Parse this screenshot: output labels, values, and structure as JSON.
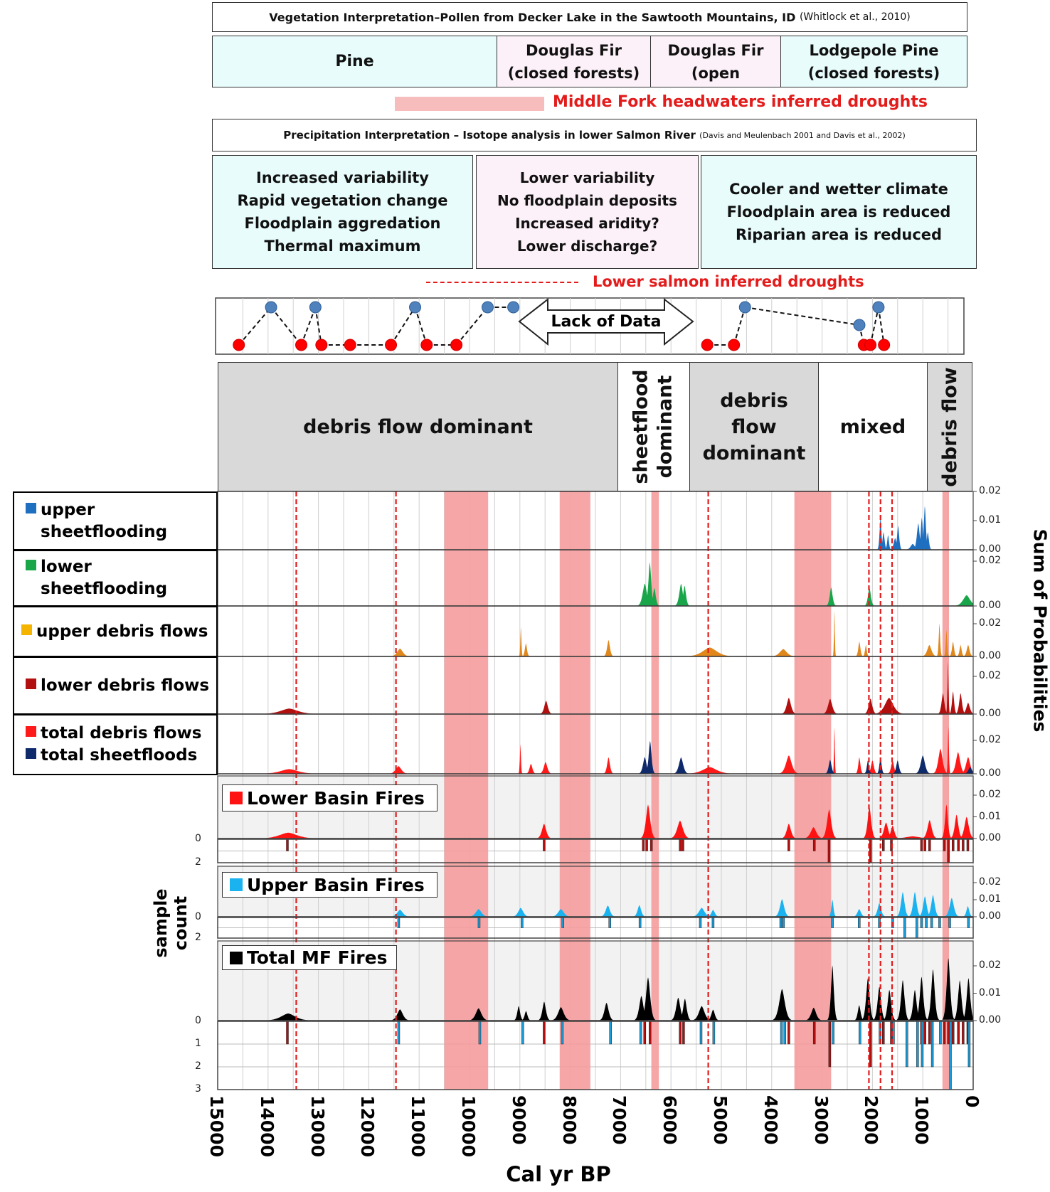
{
  "header": {
    "veg_title": "Vegetation Interpretation–Pollen from Decker Lake in the Sawtooth Mountains, ID",
    "veg_citation": "(Whitlock et al., 2010)",
    "veg_zones": [
      {
        "lines": [
          "Pine"
        ]
      },
      {
        "lines": [
          "Douglas Fir",
          "(closed forests)"
        ]
      },
      {
        "lines": [
          "Douglas Fir",
          "(open"
        ]
      },
      {
        "lines": [
          "Lodgepole Pine",
          "(closed forests)"
        ]
      }
    ],
    "mf_drought_legend": "Middle Fork headwaters inferred droughts",
    "precip_title": "Precipitation Interpretation – Isotope analysis in lower Salmon River",
    "precip_citation": "(Davis and Meulenbach 2001 and Davis et al., 2002)",
    "precip_zones": [
      {
        "lines": [
          "Increased variability",
          "Rapid vegetation change",
          "Floodplain aggredation",
          "Thermal maximum"
        ]
      },
      {
        "lines": [
          "Lower variability",
          "No floodplain deposits",
          "Increased aridity?",
          "Lower discharge?"
        ]
      },
      {
        "lines": [
          "Cooler and wetter climate",
          "Floodplain area is reduced",
          "Riparian area is reduced"
        ]
      }
    ],
    "ls_drought_legend": "Lower salmon inferred droughts",
    "lack_of_data": "Lack of Data"
  },
  "process_zones": [
    {
      "lines": [
        "debris flow dominant"
      ]
    },
    {
      "lines": [
        "sheetflood",
        "dominant"
      ]
    },
    {
      "lines": [
        "debris",
        "flow",
        "dominant"
      ]
    },
    {
      "lines": [
        "mixed"
      ]
    },
    {
      "lines": [
        "debris flow"
      ]
    }
  ],
  "legends": {
    "upper_sf": [
      "upper",
      "sheetflooding"
    ],
    "lower_sf": [
      "lower",
      "sheetflooding"
    ],
    "upper_df": "upper debris flows",
    "lower_df": "lower debris flows",
    "total_df": "total debris flows",
    "total_sf": "total sheetfloods",
    "lower_fires": "Lower Basin Fires",
    "upper_fires": "Upper Basin Fires",
    "total_fires": "Total MF Fires"
  },
  "colors": {
    "upper_sf": "#1f6fc0",
    "lower_sf": "#19a64a",
    "upper_df": "#e0881c",
    "lower_df": "#b20f0f",
    "total_df": "#ff1a1a",
    "total_sf": "#0e2a6b",
    "lower_fires": "#ff1212",
    "upper_fires": "#1ab2ef",
    "total_fires": "#000000",
    "drought_band": "#f59c9c",
    "drought_line": "#e31b1b",
    "dot_high": "#4f81bd",
    "dot_low": "#ff0000"
  },
  "chart_data": {
    "type": "area",
    "xlabel": "Cal yr BP",
    "ylabel_right": "Sum of Probabilities",
    "ylabel_left": [
      "sample",
      "count"
    ],
    "xlim": [
      15000,
      0
    ],
    "x_ticks": [
      "15000",
      "14000",
      "13000",
      "12000",
      "11000",
      "10000",
      "9000",
      "8000",
      "7000",
      "6000",
      "5000",
      "4000",
      "3000",
      "2000",
      "1000",
      "0"
    ],
    "grid": "vertical every 500 yr",
    "y_ticks": {
      "upper_sf": [
        "0.02",
        "0.01",
        "0.00"
      ],
      "lower_sf": [
        "0.02",
        "0.00"
      ],
      "upper_df": [
        "0.02",
        "0.00"
      ],
      "lower_df": [
        "0.02",
        "0.00"
      ],
      "total": [
        "0.02",
        "0.00"
      ],
      "lower_fires": [
        "0.02",
        "0.01",
        "0.00"
      ],
      "upper_fires": [
        "0.02",
        "0.01",
        "0.00"
      ],
      "total_fires": [
        "0.02",
        "0.01",
        "0.00"
      ]
    },
    "count_ticks": {
      "lower_fires": [
        "0",
        "2"
      ],
      "upper_fires": [
        "0",
        "2"
      ],
      "total_fires": [
        "0",
        "1",
        "2",
        "3"
      ]
    },
    "mf_drought_bands": [
      [
        10500,
        9630
      ],
      [
        8210,
        7600
      ],
      [
        6390,
        6240
      ],
      [
        3550,
        2820
      ],
      [
        610,
        480
      ]
    ],
    "ls_drought_lines": [
      13440,
      11460,
      5260,
      2070,
      1840,
      1610
    ],
    "precip_dots": [
      {
        "year": 14580,
        "level": "low"
      },
      {
        "year": 13940,
        "level": "high"
      },
      {
        "year": 13340,
        "level": "low"
      },
      {
        "year": 13060,
        "level": "high"
      },
      {
        "year": 12940,
        "level": "low"
      },
      {
        "year": 12370,
        "level": "low"
      },
      {
        "year": 11560,
        "level": "low"
      },
      {
        "year": 11080,
        "level": "high"
      },
      {
        "year": 10850,
        "level": "low"
      },
      {
        "year": 10260,
        "level": "low"
      },
      {
        "year": 9640,
        "level": "high"
      },
      {
        "year": 9130,
        "level": "high"
      },
      {
        "year": 5280,
        "level": "low"
      },
      {
        "year": 4750,
        "level": "low"
      },
      {
        "year": 4530,
        "level": "high"
      },
      {
        "year": 2260,
        "level": "mid"
      },
      {
        "year": 2170,
        "level": "low"
      },
      {
        "year": 2040,
        "level": "low"
      },
      {
        "year": 1880,
        "level": "high"
      },
      {
        "year": 1770,
        "level": "low"
      }
    ],
    "series": {
      "upper_sf": [
        [
          1840,
          0.0113,
          25
        ],
        [
          1780,
          0.006,
          30
        ],
        [
          1690,
          0.005,
          25
        ],
        [
          1550,
          0.004,
          40
        ],
        [
          1490,
          0.0082,
          30
        ],
        [
          1200,
          0.002,
          60
        ],
        [
          1090,
          0.009,
          40
        ],
        [
          1020,
          0.011,
          30
        ],
        [
          960,
          0.0149,
          30
        ],
        [
          900,
          0.006,
          30
        ]
      ],
      "lower_sf": [
        [
          6520,
          0.01,
          60
        ],
        [
          6420,
          0.0195,
          40
        ],
        [
          6330,
          0.008,
          40
        ],
        [
          5800,
          0.0099,
          50
        ],
        [
          5730,
          0.009,
          40
        ],
        [
          2820,
          0.0083,
          40
        ],
        [
          2060,
          0.0083,
          40
        ],
        [
          130,
          0.0048,
          100
        ]
      ],
      "upper_df": [
        [
          11380,
          0.0048,
          80
        ],
        [
          8980,
          0.0178,
          15
        ],
        [
          8880,
          0.008,
          30
        ],
        [
          7240,
          0.01,
          40
        ],
        [
          5230,
          0.0055,
          200
        ],
        [
          3770,
          0.0045,
          100
        ],
        [
          2755,
          0.028,
          12
        ],
        [
          2260,
          0.009,
          30
        ],
        [
          2130,
          0.007,
          25
        ],
        [
          870,
          0.007,
          60
        ],
        [
          670,
          0.02,
          20
        ],
        [
          530,
          0.016,
          20
        ],
        [
          400,
          0.009,
          30
        ],
        [
          250,
          0.007,
          30
        ],
        [
          100,
          0.007,
          40
        ]
      ],
      "lower_df": [
        [
          13580,
          0.0029,
          250
        ],
        [
          8480,
          0.0071,
          50
        ],
        [
          3660,
          0.0086,
          60
        ],
        [
          2840,
          0.008,
          60
        ],
        [
          2040,
          0.0082,
          50
        ],
        [
          1670,
          0.0086,
          120
        ],
        [
          600,
          0.011,
          40
        ],
        [
          500,
          0.0276,
          15
        ],
        [
          400,
          0.012,
          30
        ],
        [
          250,
          0.011,
          40
        ],
        [
          100,
          0.006,
          50
        ]
      ],
      "total_df": [
        [
          13580,
          0.0028,
          250
        ],
        [
          11410,
          0.0046,
          80
        ],
        [
          8990,
          0.0175,
          15
        ],
        [
          8780,
          0.006,
          40
        ],
        [
          8490,
          0.007,
          50
        ],
        [
          7240,
          0.0098,
          40
        ],
        [
          5230,
          0.004,
          200
        ],
        [
          3660,
          0.011,
          80
        ],
        [
          2755,
          0.028,
          12
        ],
        [
          2260,
          0.0098,
          30
        ],
        [
          2000,
          0.008,
          40
        ],
        [
          1600,
          0.008,
          40
        ],
        [
          650,
          0.015,
          60
        ],
        [
          492,
          0.028,
          15
        ],
        [
          300,
          0.013,
          60
        ],
        [
          100,
          0.01,
          60
        ]
      ],
      "total_sf": [
        [
          6520,
          0.01,
          50
        ],
        [
          6415,
          0.0196,
          40
        ],
        [
          5800,
          0.0098,
          60
        ],
        [
          2840,
          0.0084,
          40
        ],
        [
          2090,
          0.008,
          30
        ],
        [
          1840,
          0.01,
          30
        ],
        [
          1500,
          0.008,
          40
        ],
        [
          1000,
          0.011,
          60
        ],
        [
          60,
          0.004,
          50
        ]
      ],
      "lower_fires": [
        [
          13600,
          0.0027,
          250
        ],
        [
          8520,
          0.0068,
          60
        ],
        [
          6455,
          0.0156,
          60
        ],
        [
          5820,
          0.0082,
          80
        ],
        [
          3660,
          0.0068,
          60
        ],
        [
          3170,
          0.0052,
          80
        ],
        [
          2860,
          0.0134,
          60
        ],
        [
          2060,
          0.0147,
          50
        ],
        [
          1730,
          0.0074,
          60
        ],
        [
          1600,
          0.006,
          50
        ],
        [
          1200,
          0.001,
          200
        ],
        [
          865,
          0.0085,
          60
        ],
        [
          530,
          0.0156,
          40
        ],
        [
          330,
          0.011,
          50
        ],
        [
          130,
          0.01,
          60
        ]
      ],
      "upper_fires": [
        [
          11380,
          0.0041,
          80
        ],
        [
          9820,
          0.0045,
          80
        ],
        [
          8984,
          0.0052,
          70
        ],
        [
          8185,
          0.0045,
          80
        ],
        [
          7254,
          0.0066,
          60
        ],
        [
          6628,
          0.0068,
          50
        ],
        [
          5390,
          0.0052,
          80
        ],
        [
          5164,
          0.004,
          50
        ],
        [
          3795,
          0.0103,
          60
        ],
        [
          2795,
          0.01,
          30
        ],
        [
          2263,
          0.0045,
          50
        ],
        [
          1863,
          0.008,
          50
        ],
        [
          1398,
          0.0145,
          50
        ],
        [
          1158,
          0.0145,
          50
        ],
        [
          958,
          0.012,
          50
        ],
        [
          798,
          0.0127,
          50
        ],
        [
          426,
          0.011,
          60
        ],
        [
          106,
          0.0062,
          40
        ]
      ],
      "total_fires": [
        [
          13600,
          0.0026,
          200
        ],
        [
          11380,
          0.0041,
          80
        ],
        [
          9820,
          0.0045,
          80
        ],
        [
          9024,
          0.0053,
          40
        ],
        [
          8878,
          0.0035,
          40
        ],
        [
          8518,
          0.0069,
          50
        ],
        [
          8185,
          0.0049,
          80
        ],
        [
          7280,
          0.0065,
          60
        ],
        [
          6588,
          0.009,
          60
        ],
        [
          6455,
          0.0158,
          60
        ],
        [
          5856,
          0.0084,
          60
        ],
        [
          5723,
          0.008,
          50
        ],
        [
          5390,
          0.0053,
          80
        ],
        [
          5164,
          0.004,
          50
        ],
        [
          3795,
          0.0115,
          80
        ],
        [
          3167,
          0.0047,
          70
        ],
        [
          2795,
          0.0201,
          40
        ],
        [
          2263,
          0.0056,
          40
        ],
        [
          2090,
          0.0155,
          50
        ],
        [
          1863,
          0.0123,
          50
        ],
        [
          1664,
          0.0112,
          50
        ],
        [
          1398,
          0.0148,
          50
        ],
        [
          1158,
          0.0112,
          50
        ],
        [
          1025,
          0.016,
          50
        ],
        [
          798,
          0.0187,
          50
        ],
        [
          492,
          0.0228,
          50
        ],
        [
          266,
          0.0147,
          50
        ],
        [
          93,
          0.0155,
          50
        ]
      ]
    },
    "sample_counts": {
      "lower_fires": [
        [
          13616,
          1
        ],
        [
          8518,
          1
        ],
        [
          6548,
          1
        ],
        [
          6482,
          1
        ],
        [
          6389,
          1
        ],
        [
          5816,
          1
        ],
        [
          5763,
          1
        ],
        [
          3660,
          1
        ],
        [
          3154,
          1
        ],
        [
          2861,
          2
        ],
        [
          2037,
          2
        ],
        [
          1783,
          1
        ],
        [
          1624,
          1
        ],
        [
          1025,
          1
        ],
        [
          958,
          1
        ],
        [
          865,
          1
        ],
        [
          572,
          1
        ],
        [
          492,
          2
        ],
        [
          399,
          1
        ],
        [
          293,
          1
        ],
        [
          200,
          1
        ],
        [
          106,
          1
        ]
      ],
      "upper_fires": [
        [
          11406,
          1
        ],
        [
          9810,
          1
        ],
        [
          8957,
          1
        ],
        [
          8146,
          1
        ],
        [
          7214,
          1
        ],
        [
          6615,
          1
        ],
        [
          5417,
          1
        ],
        [
          5164,
          1
        ],
        [
          3820,
          1
        ],
        [
          3767,
          1
        ],
        [
          2795,
          1
        ],
        [
          2263,
          1
        ],
        [
          1863,
          1
        ],
        [
          1597,
          1
        ],
        [
          1358,
          2
        ],
        [
          1118,
          2
        ],
        [
          1025,
          1
        ],
        [
          931,
          1
        ],
        [
          825,
          1
        ],
        [
          665,
          1
        ],
        [
          466,
          1
        ],
        [
          93,
          1
        ]
      ],
      "total_lower": [
        [
          13616,
          1
        ],
        [
          8518,
          1
        ],
        [
          6522,
          1
        ],
        [
          6415,
          1
        ],
        [
          5816,
          1
        ],
        [
          5750,
          1
        ],
        [
          3660,
          1
        ],
        [
          3154,
          1
        ],
        [
          2848,
          2
        ],
        [
          2037,
          2
        ],
        [
          1783,
          1
        ],
        [
          1624,
          1
        ],
        [
          1025,
          1
        ],
        [
          958,
          1
        ],
        [
          865,
          1
        ],
        [
          572,
          1
        ],
        [
          492,
          1
        ],
        [
          399,
          1
        ],
        [
          293,
          1
        ],
        [
          200,
          1
        ],
        [
          106,
          1
        ]
      ],
      "total_upper": [
        [
          11420,
          1
        ],
        [
          9810,
          1
        ],
        [
          8957,
          1
        ],
        [
          8172,
          1
        ],
        [
          7214,
          1
        ],
        [
          6615,
          1
        ],
        [
          5417,
          1
        ],
        [
          5164,
          1
        ],
        [
          3820,
          1
        ],
        [
          3753,
          1
        ],
        [
          2795,
          1
        ],
        [
          2263,
          1
        ],
        [
          1863,
          1
        ],
        [
          1597,
          1
        ],
        [
          1331,
          2
        ],
        [
          1118,
          2
        ],
        [
          1025,
          2
        ],
        [
          825,
          2
        ],
        [
          665,
          1
        ],
        [
          466,
          3
        ],
        [
          93,
          2
        ]
      ]
    }
  }
}
